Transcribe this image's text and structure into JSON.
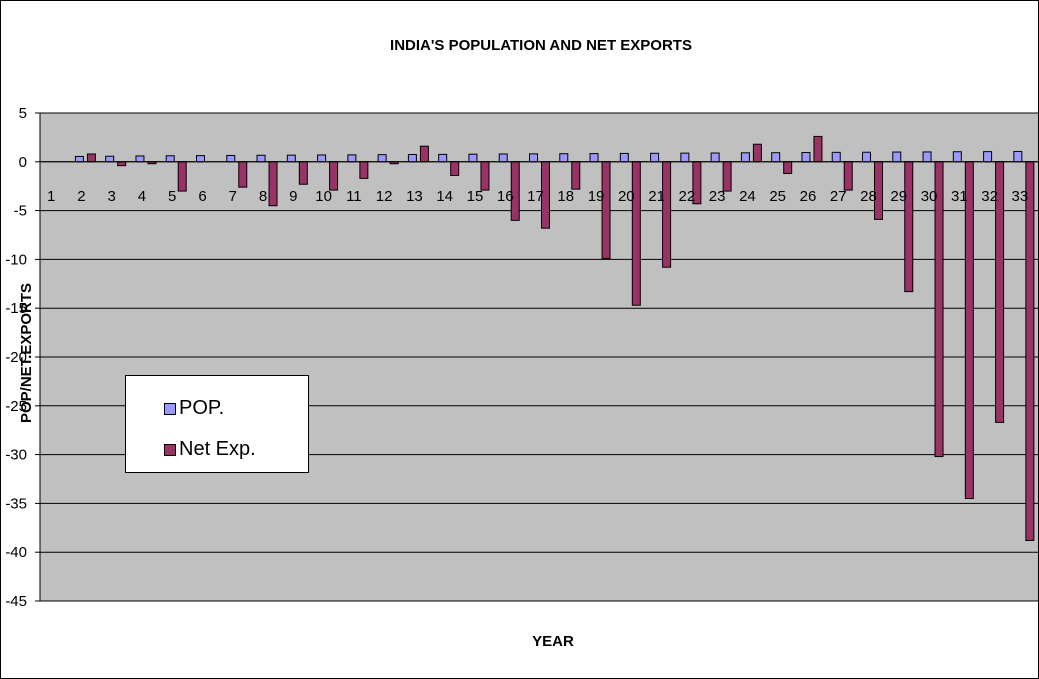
{
  "chart_data": {
    "type": "bar",
    "title": "INDIA'S POPULATION AND NET EXPORTS",
    "xlabel": "YEAR",
    "ylabel": "POP/NET.EXPORTS",
    "ylim": [
      -45,
      5
    ],
    "yticks": [
      5,
      0,
      -5,
      -10,
      -15,
      -20,
      -25,
      -30,
      -35,
      -40,
      -45
    ],
    "categories": [
      "1",
      "2",
      "3",
      "4",
      "5",
      "6",
      "7",
      "8",
      "9",
      "10",
      "11",
      "12",
      "13",
      "14",
      "15",
      "16",
      "17",
      "18",
      "19",
      "20",
      "21",
      "22",
      "23",
      "24",
      "25",
      "26",
      "27",
      "28",
      "29",
      "30",
      "31",
      "32",
      "33"
    ],
    "series": [
      {
        "name": "POP.",
        "color": "#9999FF",
        "values": [
          0,
          0.55,
          0.57,
          0.6,
          0.62,
          0.63,
          0.65,
          0.67,
          0.68,
          0.7,
          0.71,
          0.73,
          0.75,
          0.76,
          0.78,
          0.8,
          0.81,
          0.83,
          0.84,
          0.86,
          0.87,
          0.89,
          0.9,
          0.92,
          0.93,
          0.95,
          0.97,
          0.98,
          1.0,
          1.01,
          1.03,
          1.04,
          1.06
        ]
      },
      {
        "name": "Net Exp.",
        "color": "#993366",
        "values": [
          0,
          0.8,
          -0.4,
          -0.2,
          -3.0,
          0,
          -2.6,
          -4.5,
          -2.3,
          -2.9,
          -1.7,
          -0.2,
          1.6,
          -1.4,
          -2.9,
          -6.0,
          -6.8,
          -2.8,
          -9.9,
          -14.7,
          -10.8,
          -4.3,
          -3.0,
          1.8,
          -1.2,
          2.6,
          -2.9,
          -5.9,
          -13.3,
          -30.2,
          -34.5,
          -26.7,
          -38.8
        ]
      }
    ],
    "grid": true,
    "legend_position": "left"
  }
}
